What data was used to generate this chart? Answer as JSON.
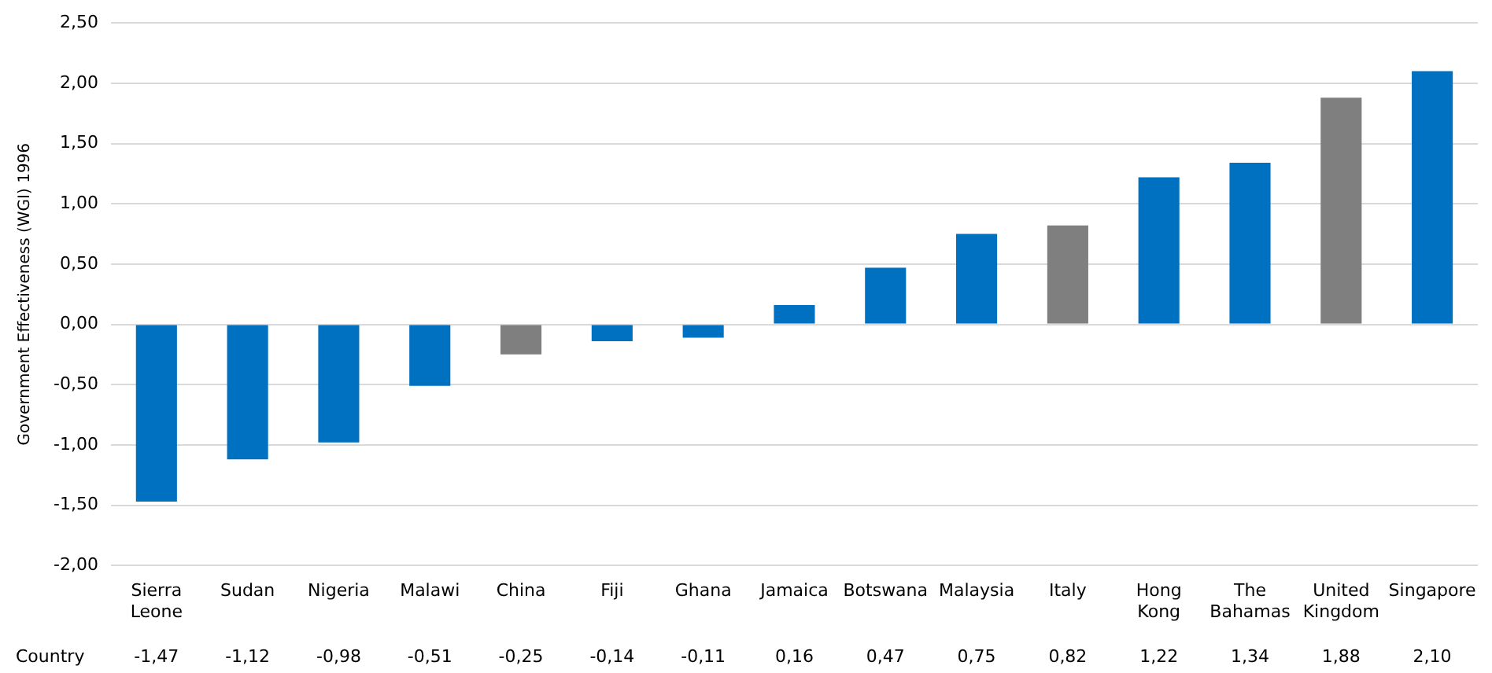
{
  "chart_data": {
    "type": "bar",
    "ylabel": "Government Effectiveness (WGI) 1996",
    "xlabel": "Country",
    "categories": [
      "Sierra Leone",
      "Sudan",
      "Nigeria",
      "Malawi",
      "China",
      "Fiji",
      "Ghana",
      "Jamaica",
      "Botswana",
      "Malaysia",
      "Italy",
      "Hong Kong",
      "The Bahamas",
      "United Kingdom",
      "Singapore"
    ],
    "values": [
      -1.47,
      -1.12,
      -0.98,
      -0.51,
      -0.25,
      -0.14,
      -0.11,
      0.16,
      0.47,
      0.75,
      0.82,
      1.22,
      1.34,
      1.88,
      2.1
    ],
    "value_labels": [
      "-1,47",
      "-1,12",
      "-0,98",
      "-0,51",
      "-0,25",
      "-0,14",
      "-0,11",
      "0,16",
      "0,47",
      "0,75",
      "0,82",
      "1,22",
      "1,34",
      "1,88",
      "2,10"
    ],
    "colors": [
      "#0070c0",
      "#0070c0",
      "#0070c0",
      "#0070c0",
      "#7f7f7f",
      "#0070c0",
      "#0070c0",
      "#0070c0",
      "#0070c0",
      "#0070c0",
      "#7f7f7f",
      "#0070c0",
      "#0070c0",
      "#7f7f7f",
      "#0070c0"
    ],
    "ylim": [
      -2,
      2.5
    ],
    "yticks": [
      {
        "value": -2,
        "label": "-2,00"
      },
      {
        "value": -1.5,
        "label": "-1,50"
      },
      {
        "value": -1,
        "label": "-1,00"
      },
      {
        "value": -0.5,
        "label": "-0,50"
      },
      {
        "value": 0,
        "label": "0,00"
      },
      {
        "value": 0.5,
        "label": "0,50"
      },
      {
        "value": 1,
        "label": "1,00"
      },
      {
        "value": 1.5,
        "label": "1,50"
      },
      {
        "value": 2,
        "label": "2,00"
      },
      {
        "value": 2.5,
        "label": "2,50"
      }
    ],
    "grid": "y",
    "legend": false
  }
}
